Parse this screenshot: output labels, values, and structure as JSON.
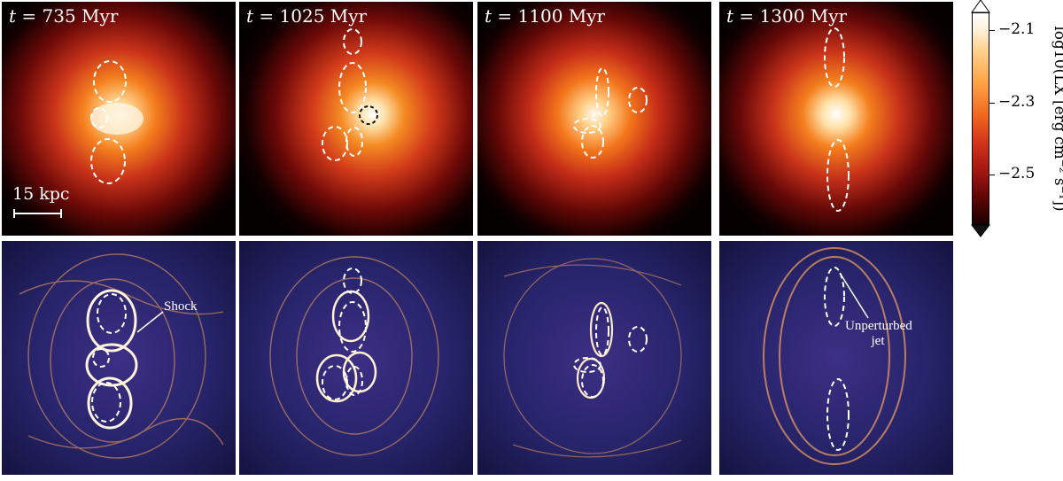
{
  "panels": [
    {
      "time_symbol": "t",
      "time_value": "= 735 Myr"
    },
    {
      "time_symbol": "t",
      "time_value": "= 1025 Myr"
    },
    {
      "time_symbol": "t",
      "time_value": "= 1100 Myr"
    },
    {
      "time_symbol": "t",
      "time_value": "= 1300 Myr"
    }
  ],
  "scale_bar": {
    "label": "15 kpc"
  },
  "annotations": {
    "shock": "Shock",
    "jet_line1": "Unperturbed",
    "jet_line2": "jet"
  },
  "colorbar": {
    "title": "log10(LX [erg cm⁻² s⁻¹])",
    "ticks": [
      "−2.1",
      "−2.3",
      "−2.5"
    ],
    "colors": {
      "top": "#ffffff",
      "mid": "#e25a1c",
      "bottom": "#1a0000"
    }
  },
  "colors": {
    "shock_map_bg": "#1e1d5a",
    "shock_map_line": "#f7a35c"
  }
}
